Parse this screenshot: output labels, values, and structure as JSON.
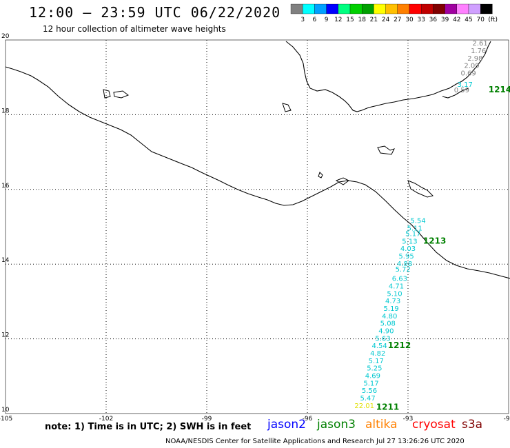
{
  "header": {
    "title": "12:00 – 23:59 UTC 06/22/2020",
    "subtitle": "12 hour collection of altimeter wave heights"
  },
  "legend": {
    "labels": [
      "3",
      "6",
      "9",
      "12",
      "15",
      "18",
      "21",
      "24",
      "27",
      "30",
      "33",
      "36",
      "39",
      "42",
      "45",
      "70"
    ],
    "unit": "(ft)",
    "colors": [
      "#808080",
      "#00ffff",
      "#00a0ff",
      "#0000ff",
      "#00ff80",
      "#00d000",
      "#00a000",
      "#ffff00",
      "#ffc000",
      "#ff8000",
      "#ff0000",
      "#c00000",
      "#800000",
      "#a000a0",
      "#ff80ff",
      "#d0a0ff",
      "#000000"
    ]
  },
  "map": {
    "lat_labels": [
      "20",
      "18",
      "16",
      "14",
      "12",
      "10"
    ],
    "lon_labels": [
      "-105",
      "-102",
      "-99",
      "-96",
      "-93",
      "-90"
    ],
    "lat_values": [
      20,
      18,
      16,
      14,
      12,
      10
    ],
    "lon_values": [
      -105,
      -102,
      -99,
      -96,
      -93,
      -90
    ]
  },
  "tracks": [
    {
      "id": "1214",
      "color": "#808080",
      "label_color": "#008000",
      "label_lat": 18.6,
      "label_lon": -90.6,
      "points": [
        {
          "v": "2.61",
          "lat": 19.85,
          "lon": -90.85,
          "c": "#808080"
        },
        {
          "v": "1.76",
          "lat": 19.65,
          "lon": -90.9,
          "c": "#808080"
        },
        {
          "v": "2.98",
          "lat": 19.45,
          "lon": -91.0,
          "c": "#808080"
        },
        {
          "v": "2.09",
          "lat": 19.25,
          "lon": -91.1,
          "c": "#808080"
        },
        {
          "v": "0.69",
          "lat": 19.05,
          "lon": -91.2,
          "c": "#808080"
        },
        {
          "v": "3.17",
          "lat": 18.75,
          "lon": -91.3,
          "c": "#00c8d0"
        },
        {
          "v": "0.59",
          "lat": 18.6,
          "lon": -91.4,
          "c": "#808080"
        }
      ]
    },
    {
      "id": "1213",
      "color": "#00c8d0",
      "label_color": "#008000",
      "label_lat": 14.55,
      "label_lon": -92.55,
      "points": [
        {
          "v": "5.54",
          "lat": 15.1,
          "lon": -92.7,
          "c": "#00c8d0"
        },
        {
          "v": "5.11",
          "lat": 14.9,
          "lon": -92.8,
          "c": "#00c8d0"
        },
        {
          "v": "5.17",
          "lat": 14.75,
          "lon": -92.85,
          "c": "#00c8d0"
        },
        {
          "v": "5.13",
          "lat": 14.55,
          "lon": -92.95,
          "c": "#00c8d0"
        },
        {
          "v": "4.03",
          "lat": 14.35,
          "lon": -93.0,
          "c": "#00c8d0"
        },
        {
          "v": "5.95",
          "lat": 14.15,
          "lon": -93.05,
          "c": "#00c8d0"
        },
        {
          "v": "4.88",
          "lat": 13.95,
          "lon": -93.1,
          "c": "#00c8d0"
        },
        {
          "v": "5.72",
          "lat": 13.8,
          "lon": -93.15,
          "c": "#00c8d0"
        }
      ]
    },
    {
      "id": "1212",
      "color": "#00c8d0",
      "label_color": "#008000",
      "label_lat": 11.75,
      "label_lon": -93.6,
      "points": [
        {
          "v": "6.63",
          "lat": 13.55,
          "lon": -93.25,
          "c": "#00c8d0"
        },
        {
          "v": "4.71",
          "lat": 13.35,
          "lon": -93.35,
          "c": "#00c8d0"
        },
        {
          "v": "5.10",
          "lat": 13.15,
          "lon": -93.4,
          "c": "#00c8d0"
        },
        {
          "v": "4.73",
          "lat": 12.95,
          "lon": -93.45,
          "c": "#00c8d0"
        },
        {
          "v": "5.19",
          "lat": 12.75,
          "lon": -93.5,
          "c": "#00c8d0"
        },
        {
          "v": "4.80",
          "lat": 12.55,
          "lon": -93.55,
          "c": "#00c8d0"
        },
        {
          "v": "5.08",
          "lat": 12.35,
          "lon": -93.6,
          "c": "#00c8d0"
        },
        {
          "v": "4.90",
          "lat": 12.15,
          "lon": -93.65,
          "c": "#00c8d0"
        },
        {
          "v": "5.63",
          "lat": 11.95,
          "lon": -93.75,
          "c": "#00c8d0"
        },
        {
          "v": "4.54",
          "lat": 11.75,
          "lon": -93.85,
          "c": "#00c8d0"
        },
        {
          "v": "4.82",
          "lat": 11.55,
          "lon": -93.9,
          "c": "#00c8d0"
        }
      ]
    },
    {
      "id": "1211",
      "color": "#00c8d0",
      "label_color": "#008000",
      "label_lat": 10.1,
      "label_lon": -93.95,
      "points": [
        {
          "v": "5.17",
          "lat": 11.35,
          "lon": -93.95,
          "c": "#00c8d0"
        },
        {
          "v": "5.25",
          "lat": 11.15,
          "lon": -94.0,
          "c": "#00c8d0"
        },
        {
          "v": "4.69",
          "lat": 10.95,
          "lon": -94.05,
          "c": "#00c8d0"
        },
        {
          "v": "5.17",
          "lat": 10.75,
          "lon": -94.1,
          "c": "#00c8d0"
        },
        {
          "v": "5.56",
          "lat": 10.55,
          "lon": -94.15,
          "c": "#00c8d0"
        },
        {
          "v": "5.47",
          "lat": 10.35,
          "lon": -94.2,
          "c": "#00c8d0"
        },
        {
          "v": "22.01",
          "lat": 10.15,
          "lon": -94.3,
          "c": "#e0e000"
        }
      ]
    }
  ],
  "footer": {
    "note": "note: 1) Time is in UTC; 2) SWH is in feet",
    "credit": "NOAA/NESDIS Center for Satellite Applications and Research   Jul 27 13:26:26 UTC 2020",
    "satellites": [
      {
        "name": "jason2",
        "color": "#0000ff"
      },
      {
        "name": "jason3",
        "color": "#008000"
      },
      {
        "name": "altika",
        "color": "#ff8000"
      },
      {
        "name": "cryosat",
        "color": "#ff0000"
      },
      {
        "name": "s3a",
        "color": "#800000"
      }
    ]
  }
}
